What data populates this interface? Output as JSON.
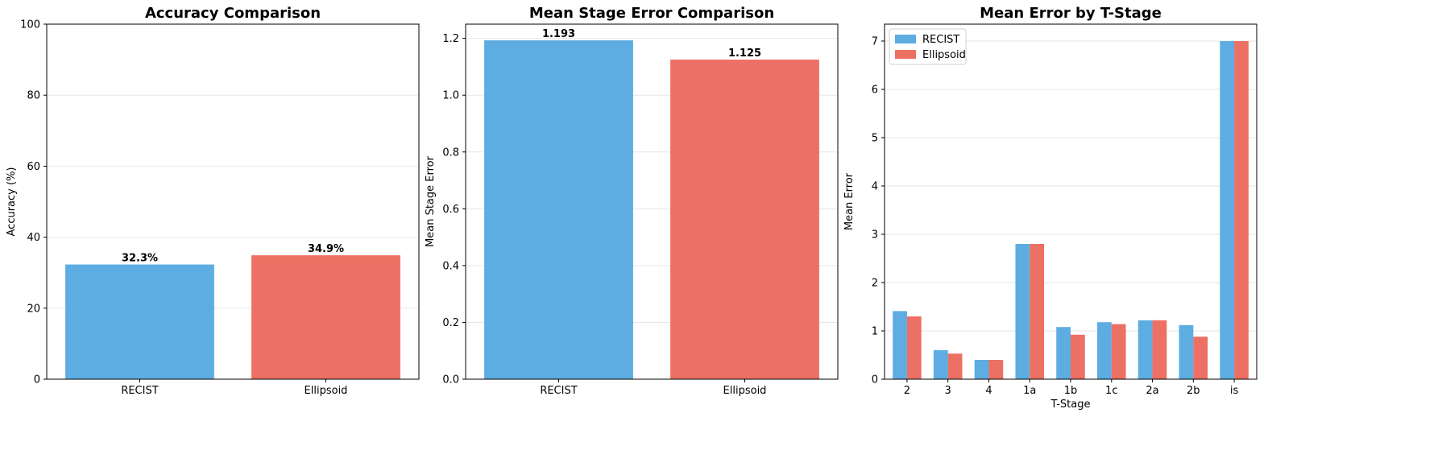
{
  "colors": {
    "recist": "#5DADE2",
    "ellipsoid": "#EC7063",
    "grid": "#e6e6e6"
  },
  "chart_data": [
    {
      "type": "bar",
      "title": "Accuracy Comparison",
      "xlabel": "",
      "ylabel": "Accuracy (%)",
      "categories": [
        "RECIST",
        "Ellipsoid"
      ],
      "values": [
        32.3,
        34.9
      ],
      "value_labels": [
        "32.3%",
        "34.9%"
      ],
      "ylim": [
        0,
        100
      ],
      "yticks": [
        0,
        20,
        40,
        60,
        80,
        100
      ],
      "ytick_labels": [
        "0",
        "20",
        "40",
        "60",
        "80",
        "100"
      ],
      "grid": "y"
    },
    {
      "type": "bar",
      "title": "Mean Stage Error Comparison",
      "xlabel": "",
      "ylabel": "Mean Stage Error",
      "categories": [
        "RECIST",
        "Ellipsoid"
      ],
      "values": [
        1.193,
        1.125
      ],
      "value_labels": [
        "1.193",
        "1.125"
      ],
      "ylim": [
        0,
        1.25
      ],
      "yticks": [
        0,
        0.2,
        0.4,
        0.6,
        0.8,
        1.0,
        1.2
      ],
      "ytick_labels": [
        "0.0",
        "0.2",
        "0.4",
        "0.6",
        "0.8",
        "1.0",
        "1.2"
      ],
      "grid": "y"
    },
    {
      "type": "bar",
      "title": "Mean Error by T-Stage",
      "xlabel": "T-Stage",
      "ylabel": "Mean Error",
      "categories": [
        "2",
        "3",
        "4",
        "1a",
        "1b",
        "1c",
        "2a",
        "2b",
        "is"
      ],
      "series": [
        {
          "name": "RECIST",
          "values": [
            1.41,
            0.6,
            0.4,
            2.8,
            1.08,
            1.18,
            1.22,
            1.12,
            7.0
          ]
        },
        {
          "name": "Ellipsoid",
          "values": [
            1.3,
            0.53,
            0.4,
            2.8,
            0.92,
            1.14,
            1.22,
            0.88,
            7.0
          ]
        }
      ],
      "ylim": [
        0,
        7.35
      ],
      "yticks": [
        0,
        1,
        2,
        3,
        4,
        5,
        6,
        7
      ],
      "ytick_labels": [
        "0",
        "1",
        "2",
        "3",
        "4",
        "5",
        "6",
        "7"
      ],
      "legend": "top-left",
      "grid": "y"
    }
  ]
}
